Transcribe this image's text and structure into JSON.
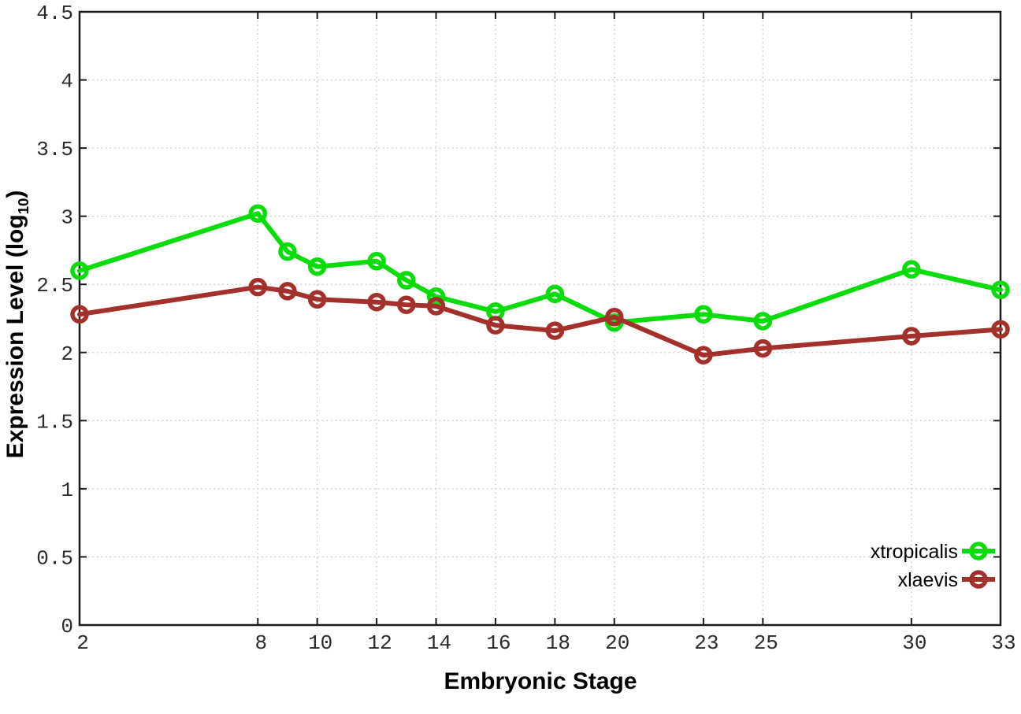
{
  "chart_data": {
    "type": "line",
    "title": "",
    "xlabel": "Embryonic Stage",
    "ylabel": "Expression Level (log10)",
    "ylabel_parts": {
      "prefix": "Expression Level (log",
      "subscript": "10",
      "suffix": ")"
    },
    "x": [
      2,
      8,
      9,
      10,
      12,
      13,
      14,
      16,
      18,
      20,
      23,
      25,
      30,
      33
    ],
    "series": [
      {
        "name": "xtropicalis",
        "color": "#09dd09",
        "values": [
          2.6,
          3.02,
          2.74,
          2.63,
          2.67,
          2.53,
          2.41,
          2.3,
          2.43,
          2.22,
          2.28,
          2.23,
          2.61,
          2.46
        ]
      },
      {
        "name": "xlaevis",
        "color": "#a3312a",
        "values": [
          2.28,
          2.48,
          2.45,
          2.39,
          2.37,
          2.35,
          2.34,
          2.2,
          2.16,
          2.26,
          1.98,
          2.03,
          2.12,
          2.17
        ]
      }
    ],
    "xlim": [
      2,
      33
    ],
    "ylim": [
      0,
      4.5
    ],
    "xticks": [
      2,
      8,
      10,
      12,
      14,
      16,
      18,
      20,
      23,
      25,
      30,
      33
    ],
    "xtick_labels": [
      "2",
      "8",
      "10",
      "12",
      "14",
      "16",
      "18",
      "20",
      "23",
      "25",
      "30",
      "33"
    ],
    "yticks": [
      0,
      0.5,
      1,
      1.5,
      2,
      2.5,
      3,
      3.5,
      4,
      4.5
    ],
    "ytick_labels": [
      "0",
      "0.5",
      "1",
      "1.5",
      "2",
      "2.5",
      "3",
      "3.5",
      "4",
      "4.5"
    ],
    "grid": "dotted",
    "legend_position": "inside-right-bottom",
    "colors": {
      "background": "#ffffff",
      "border": "#1a1a1a",
      "grid": "#c0c0c0",
      "tick_label": "#2b2b2b",
      "text": "#000000"
    }
  }
}
